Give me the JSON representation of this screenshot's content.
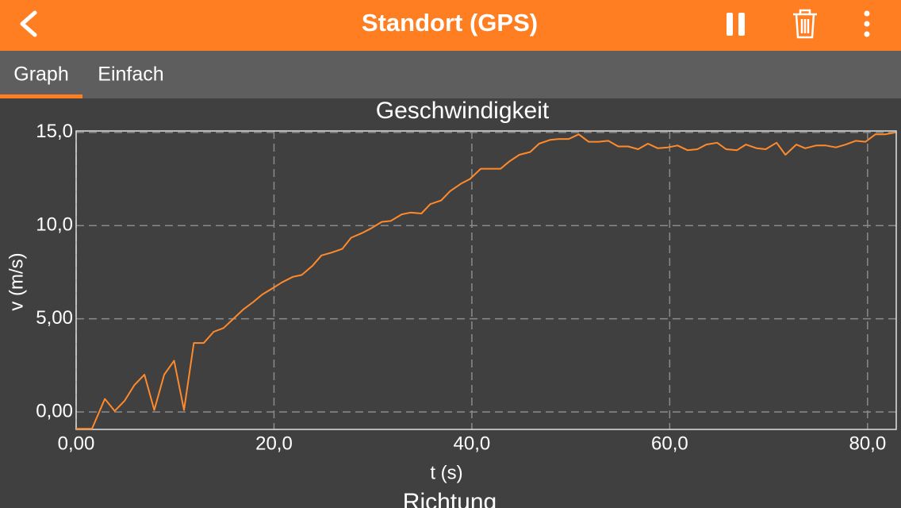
{
  "app_bar": {
    "title": "Standort (GPS)"
  },
  "tabs": {
    "items": [
      "Graph",
      "Einfach"
    ],
    "selected": 0
  },
  "chart_data": {
    "type": "line",
    "title": "Geschwindigkeit",
    "x_label": "t (s)",
    "y_label": "v (m/s)",
    "x": [
      0,
      1.6,
      2.9,
      3.9,
      4.9,
      5.9,
      6.9,
      7.9,
      8.9,
      9.9,
      10.9,
      11.9,
      12.9,
      13.9,
      14.9,
      15.9,
      16.9,
      17.9,
      18.8,
      19.9,
      20.8,
      21.9,
      22.8,
      23.9,
      24.8,
      25.8,
      26.9,
      27.8,
      28.9,
      29.8,
      30.9,
      31.8,
      32.9,
      33.8,
      34.9,
      35.8,
      36.9,
      37.8,
      38.9,
      39.8,
      40.9,
      41.8,
      42.9,
      43.8,
      44.8,
      45.9,
      46.8,
      47.9,
      48.8,
      49.8,
      50.8,
      51.8,
      52.8,
      53.8,
      54.8,
      55.8,
      56.8,
      57.8,
      58.8,
      59.8,
      60.8,
      61.8,
      62.8,
      63.7,
      64.8,
      65.7,
      66.8,
      67.7,
      68.8,
      69.7,
      70.8,
      71.7,
      72.8,
      73.7,
      74.8,
      75.8,
      76.8,
      77.8,
      78.8,
      79.8,
      80.8,
      81.8,
      82.8
    ],
    "series": [
      {
        "color": "#ff8a2b",
        "values": [
          -0.9,
          -0.9,
          0.7,
          0.05,
          0.6,
          1.45,
          2.0,
          0.1,
          2.0,
          2.75,
          0.1,
          3.7,
          3.7,
          4.3,
          4.5,
          5.0,
          5.5,
          5.9,
          6.3,
          6.65,
          6.95,
          7.25,
          7.35,
          7.85,
          8.4,
          8.55,
          8.75,
          9.35,
          9.6,
          9.85,
          10.2,
          10.25,
          10.6,
          10.7,
          10.65,
          11.15,
          11.35,
          11.85,
          12.25,
          12.5,
          13.05,
          13.05,
          13.05,
          13.45,
          13.8,
          13.95,
          14.4,
          14.6,
          14.65,
          14.65,
          14.9,
          14.5,
          14.5,
          14.55,
          14.25,
          14.25,
          14.1,
          14.4,
          14.15,
          14.2,
          14.3,
          14.05,
          14.1,
          14.35,
          14.45,
          14.1,
          14.05,
          14.35,
          14.15,
          14.1,
          14.45,
          13.8,
          14.35,
          14.15,
          14.3,
          14.3,
          14.2,
          14.35,
          14.55,
          14.5,
          14.9,
          14.9,
          15.0
        ]
      }
    ],
    "xlim": [
      0,
      82.9
    ],
    "ylim": [
      -0.94,
      15.08
    ],
    "xticks": [
      {
        "value": 0,
        "label": "0,00"
      },
      {
        "value": 20,
        "label": "20,0"
      },
      {
        "value": 40,
        "label": "40,0"
      },
      {
        "value": 60,
        "label": "60,0"
      },
      {
        "value": 80,
        "label": "80,0"
      }
    ],
    "yticks": [
      {
        "value": 0,
        "label": "0,00"
      },
      {
        "value": 5,
        "label": "5,00"
      },
      {
        "value": 10,
        "label": "10,0"
      },
      {
        "value": 15,
        "label": "15,0"
      }
    ],
    "grid": true
  },
  "next_view_title": "Richtung"
}
